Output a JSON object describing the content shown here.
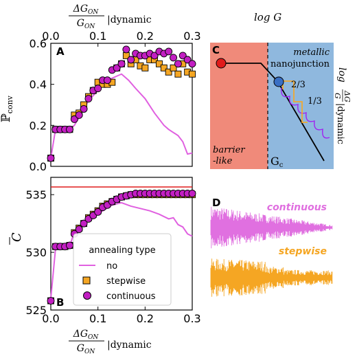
{
  "figure": {
    "top_axis_label": "ΔG_ON/G_ON |dynamic",
    "bottom_axis_label": "ΔG_ON/G_ON |dynamic",
    "panel_a_ylabel": "ℙ_conv",
    "panel_b_ylabel": "C̄",
    "panel_labels": [
      "A",
      "B",
      "C",
      "D"
    ],
    "x_ticks": [
      "0.0",
      "0.1",
      "0.2",
      "0.3"
    ],
    "a_y_ticks": [
      "0.0",
      "0.2",
      "0.4",
      "0.6"
    ],
    "b_y_ticks": [
      "525",
      "530",
      "535"
    ],
    "legend_title": "annealing type",
    "legend_items": [
      "no",
      "stepwise",
      "continuous"
    ]
  },
  "panel_c": {
    "x_label": "log G",
    "y_label": "log ΔG/G |dynamic",
    "region_left": [
      "barrier",
      "-like"
    ],
    "region_right": [
      "metallic",
      "nanojunction"
    ],
    "gc_label": "G_c",
    "frac_upper": "2/3",
    "frac_lower": "1/3",
    "colors": {
      "barrier": "#f08a7a",
      "metallic": "#8fb8de",
      "red_dot": "#e01b1b",
      "blue_dot": "#3a6fc4",
      "orange": "#f0a830",
      "purple": "#a020f0"
    }
  },
  "panel_d": {
    "labels": [
      "continuous",
      "stepwise"
    ],
    "colors": {
      "continuous": "#e070e0",
      "stepwise": "#f5a623"
    }
  },
  "chart_data": [
    {
      "type": "scatter",
      "panel": "A",
      "xlabel": "ΔG_ON/G_ON |dynamic",
      "ylabel": "ℙ_conv",
      "xlim": [
        0,
        0.3
      ],
      "ylim": [
        0.0,
        0.6
      ],
      "series": [
        {
          "name": "no",
          "kind": "line",
          "color": "#e060e0",
          "x": [
            0.0,
            0.01,
            0.04,
            0.05,
            0.07,
            0.08,
            0.1,
            0.12,
            0.15,
            0.165,
            0.18,
            0.2,
            0.22,
            0.24,
            0.25,
            0.27,
            0.28,
            0.29,
            0.3
          ],
          "y": [
            0.04,
            0.18,
            0.18,
            0.2,
            0.28,
            0.32,
            0.37,
            0.42,
            0.45,
            0.42,
            0.38,
            0.33,
            0.26,
            0.2,
            0.18,
            0.15,
            0.12,
            0.06,
            0.065
          ]
        },
        {
          "name": "stepwise",
          "kind": "marker-square",
          "color": "#f5a623",
          "x": [
            0.0,
            0.01,
            0.02,
            0.03,
            0.04,
            0.05,
            0.06,
            0.07,
            0.08,
            0.09,
            0.1,
            0.11,
            0.12,
            0.13,
            0.14,
            0.15,
            0.16,
            0.17,
            0.18,
            0.19,
            0.2,
            0.21,
            0.22,
            0.23,
            0.24,
            0.25,
            0.26,
            0.27,
            0.28,
            0.29,
            0.3
          ],
          "y": [
            0.04,
            0.18,
            0.18,
            0.18,
            0.18,
            0.25,
            0.26,
            0.3,
            0.34,
            0.37,
            0.41,
            0.4,
            0.4,
            0.41,
            0.48,
            0.5,
            0.54,
            0.5,
            0.52,
            0.49,
            0.48,
            0.52,
            0.52,
            0.5,
            0.48,
            0.46,
            0.48,
            0.45,
            0.5,
            0.46,
            0.45
          ]
        },
        {
          "name": "continuous",
          "kind": "marker-circle",
          "color": "#c21fc2",
          "x": [
            0.0,
            0.01,
            0.02,
            0.03,
            0.04,
            0.05,
            0.06,
            0.07,
            0.08,
            0.09,
            0.1,
            0.11,
            0.12,
            0.13,
            0.14,
            0.15,
            0.16,
            0.17,
            0.18,
            0.19,
            0.2,
            0.21,
            0.22,
            0.23,
            0.24,
            0.25,
            0.26,
            0.27,
            0.28,
            0.29,
            0.3
          ],
          "y": [
            0.04,
            0.18,
            0.18,
            0.18,
            0.18,
            0.23,
            0.25,
            0.28,
            0.33,
            0.37,
            0.38,
            0.42,
            0.42,
            0.47,
            0.48,
            0.5,
            0.57,
            0.52,
            0.55,
            0.54,
            0.54,
            0.55,
            0.54,
            0.56,
            0.55,
            0.56,
            0.53,
            0.5,
            0.54,
            0.52,
            0.5
          ]
        }
      ]
    },
    {
      "type": "scatter",
      "panel": "B",
      "xlabel": "ΔG_ON/G_ON |dynamic",
      "ylabel": "C̄",
      "xlim": [
        0,
        0.3
      ],
      "ylim": [
        525,
        536
      ],
      "reference_line": 536.2,
      "series": [
        {
          "name": "no",
          "kind": "line",
          "color": "#e060e0",
          "x": [
            0.0,
            0.01,
            0.04,
            0.05,
            0.07,
            0.09,
            0.11,
            0.13,
            0.15,
            0.17,
            0.19,
            0.21,
            0.23,
            0.25,
            0.26,
            0.27,
            0.28,
            0.29,
            0.3
          ],
          "y": [
            526,
            530.3,
            530.5,
            531.8,
            532.5,
            533.0,
            533.6,
            534.1,
            534.3,
            534.0,
            533.8,
            533.6,
            533.3,
            532.9,
            533.0,
            532.4,
            532.2,
            531.6,
            531.4
          ]
        },
        {
          "name": "stepwise",
          "kind": "marker-square",
          "color": "#f5a623",
          "x": [
            0.0,
            0.01,
            0.02,
            0.03,
            0.04,
            0.05,
            0.06,
            0.07,
            0.08,
            0.09,
            0.1,
            0.11,
            0.12,
            0.13,
            0.14,
            0.15,
            0.16,
            0.17,
            0.18,
            0.19,
            0.2,
            0.21,
            0.22,
            0.23,
            0.24,
            0.25,
            0.26,
            0.27,
            0.28,
            0.29,
            0.3
          ],
          "y": [
            525.8,
            530.5,
            530.5,
            530.5,
            530.6,
            531.7,
            532.1,
            532.5,
            533.0,
            533.3,
            533.6,
            534.0,
            534.2,
            534.4,
            534.6,
            534.8,
            534.9,
            535.0,
            535.0,
            535.0,
            535.0,
            535.0,
            535.0,
            535.0,
            535.0,
            535.0,
            535.0,
            535.0,
            535.0,
            535.0,
            535.0
          ]
        },
        {
          "name": "continuous",
          "kind": "marker-circle",
          "color": "#c21fc2",
          "x": [
            0.0,
            0.01,
            0.02,
            0.03,
            0.04,
            0.05,
            0.06,
            0.07,
            0.08,
            0.09,
            0.1,
            0.11,
            0.12,
            0.13,
            0.14,
            0.15,
            0.16,
            0.17,
            0.18,
            0.19,
            0.2,
            0.21,
            0.22,
            0.23,
            0.24,
            0.25,
            0.26,
            0.27,
            0.28,
            0.29,
            0.3
          ],
          "y": [
            525.8,
            530.5,
            530.5,
            530.5,
            530.6,
            531.6,
            532.0,
            532.5,
            532.9,
            533.2,
            533.5,
            533.9,
            534.1,
            534.4,
            534.6,
            534.8,
            534.9,
            535.0,
            535.1,
            535.1,
            535.1,
            535.1,
            535.1,
            535.1,
            535.1,
            535.1,
            535.1,
            535.1,
            535.1,
            535.1,
            535.1
          ]
        }
      ]
    }
  ]
}
